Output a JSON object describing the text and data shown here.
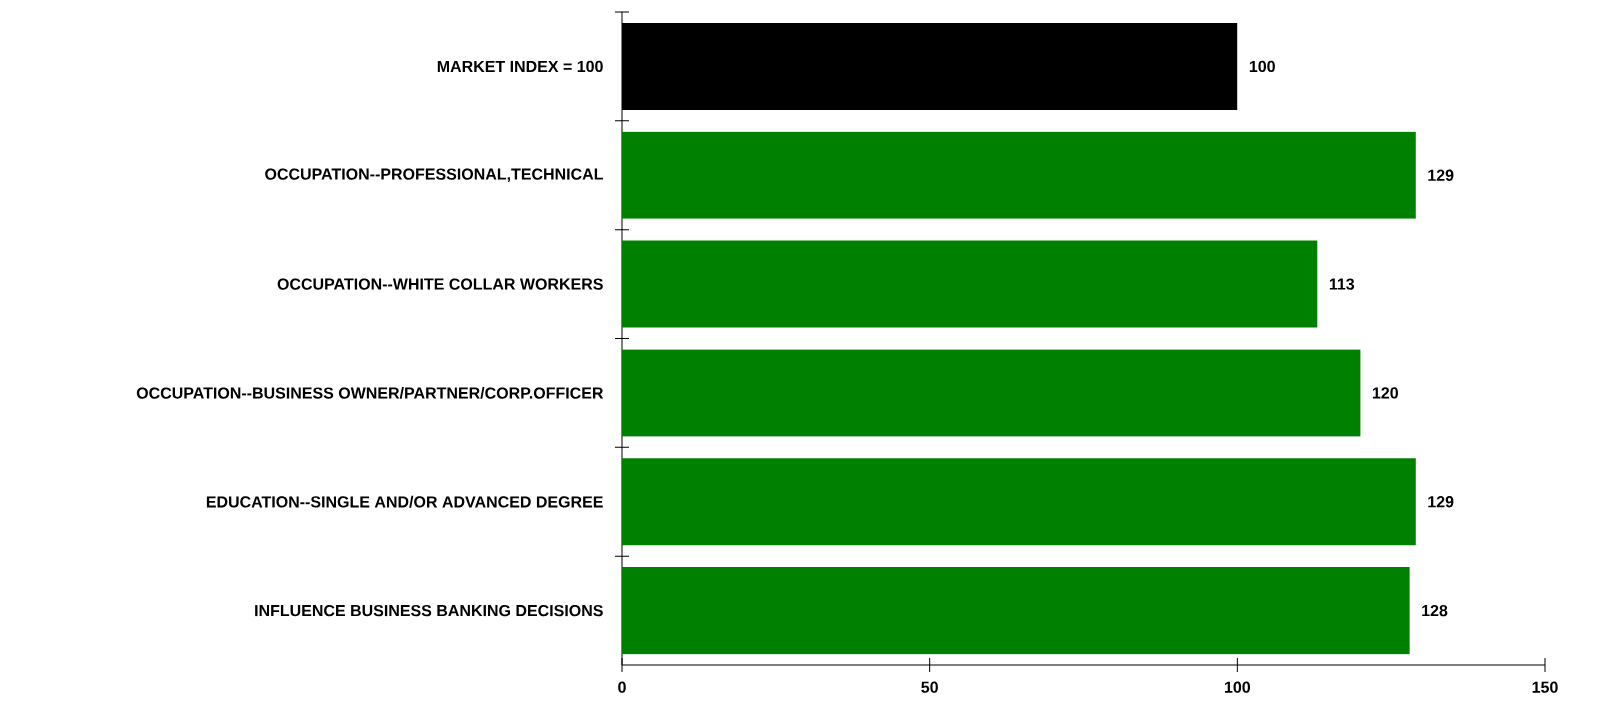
{
  "chart_data": {
    "type": "bar",
    "orientation": "horizontal",
    "categories": [
      "MARKET INDEX = 100",
      "OCCUPATION--PROFESSIONAL,TECHNICAL",
      "OCCUPATION--WHITE COLLAR WORKERS",
      "OCCUPATION--BUSINESS OWNER/PARTNER/CORP.OFFICER",
      "EDUCATION--SINGLE AND/OR ADVANCED DEGREE",
      "INFLUENCE BUSINESS BANKING DECISIONS"
    ],
    "values": [
      100,
      129,
      113,
      120,
      129,
      128
    ],
    "colors": [
      "#000000",
      "#008000",
      "#008000",
      "#008000",
      "#008000",
      "#008000"
    ],
    "xlim": [
      0,
      150
    ],
    "xticks": [
      0,
      50,
      100,
      150
    ],
    "data_labels": true,
    "grid": false
  }
}
